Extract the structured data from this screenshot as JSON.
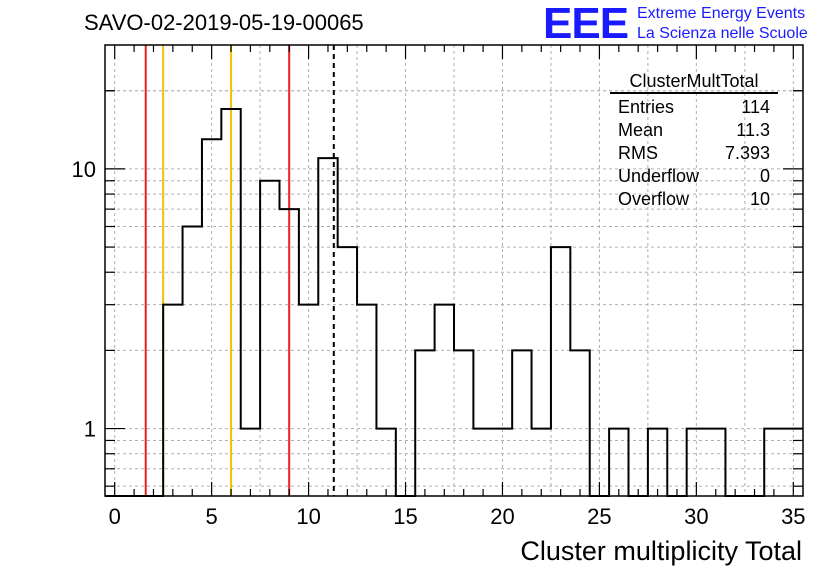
{
  "title": "SAVO-02-2019-05-19-00065",
  "logo": {
    "letters": "EEE",
    "line1": "Extreme Energy Events",
    "line2": "La Scienza nelle Scuole",
    "color": "#1a1aff"
  },
  "stats": {
    "title": "ClusterMultTotal",
    "rows": [
      {
        "label": "Entries",
        "value": "114"
      },
      {
        "label": "Mean",
        "value": "11.3"
      },
      {
        "label": "RMS",
        "value": "7.393"
      },
      {
        "label": "Underflow",
        "value": "0"
      },
      {
        "label": "Overflow",
        "value": "10"
      }
    ]
  },
  "chart_data": {
    "type": "bar",
    "histogram": true,
    "xlabel": "Cluster multiplicity Total",
    "ylabel": "",
    "xlim": [
      -0.5,
      35.5
    ],
    "ylim": [
      0.55,
      30
    ],
    "yscale": "log",
    "grid": true,
    "bin_width": 1,
    "bin_start": -0.5,
    "values": [
      0,
      0,
      0,
      3,
      6,
      13,
      17,
      1,
      9,
      7,
      3,
      11,
      5,
      3,
      1,
      0,
      2,
      3,
      2,
      1,
      1,
      2,
      1,
      5,
      2,
      0,
      1,
      0,
      1,
      0,
      1,
      1,
      0,
      0,
      1,
      1
    ],
    "xticks": [
      0,
      5,
      10,
      15,
      20,
      25,
      30,
      35
    ],
    "xtick_labels": [
      "0",
      "5",
      "10",
      "15",
      "20",
      "25",
      "30",
      "35"
    ],
    "yticks": [
      1,
      10
    ],
    "ytick_labels": [
      "1",
      "10"
    ],
    "vlines": [
      {
        "x": 1.6,
        "color": "#e8221c",
        "style": "solid"
      },
      {
        "x": 2.5,
        "color": "#f2c200",
        "style": "solid"
      },
      {
        "x": 6.0,
        "color": "#f2c200",
        "style": "solid"
      },
      {
        "x": 9.0,
        "color": "#e8221c",
        "style": "solid"
      },
      {
        "x": 11.3,
        "color": "#000000",
        "style": "dashed"
      }
    ]
  }
}
